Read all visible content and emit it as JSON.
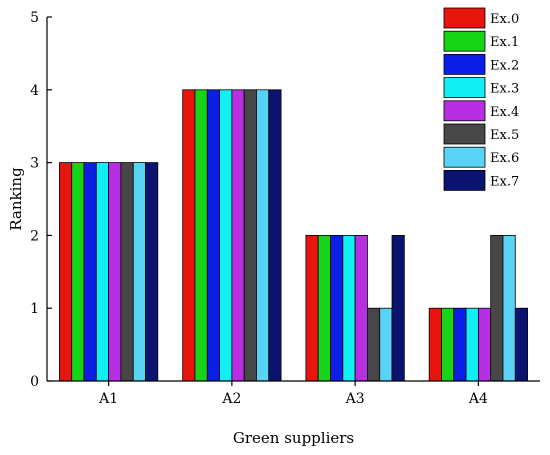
{
  "chart_data": {
    "type": "bar",
    "title": "",
    "xlabel": "Green suppliers",
    "ylabel": "Ranking",
    "ylim": [
      0,
      5
    ],
    "yticks": [
      "0",
      "1",
      "2",
      "3",
      "4",
      "5"
    ],
    "categories": [
      "A1",
      "A2",
      "A3",
      "A4"
    ],
    "grid": false,
    "legend_position": "top-right",
    "series": [
      {
        "name": "Ex.0",
        "color": "#e8150f",
        "values": [
          3,
          4,
          2,
          1
        ]
      },
      {
        "name": "Ex.1",
        "color": "#17d417",
        "values": [
          3,
          4,
          2,
          1
        ]
      },
      {
        "name": "Ex.2",
        "color": "#0b1ee6",
        "values": [
          3,
          4,
          2,
          1
        ]
      },
      {
        "name": "Ex.3",
        "color": "#10f0f4",
        "values": [
          3,
          4,
          2,
          1
        ]
      },
      {
        "name": "Ex.4",
        "color": "#b82ee2",
        "values": [
          3,
          4,
          2,
          1
        ]
      },
      {
        "name": "Ex.5",
        "color": "#474747",
        "values": [
          3,
          4,
          1,
          2
        ]
      },
      {
        "name": "Ex.6",
        "color": "#59d3f5",
        "values": [
          3,
          4,
          1,
          2
        ]
      },
      {
        "name": "Ex.7",
        "color": "#0a1470",
        "values": [
          3,
          4,
          2,
          1
        ]
      }
    ]
  }
}
